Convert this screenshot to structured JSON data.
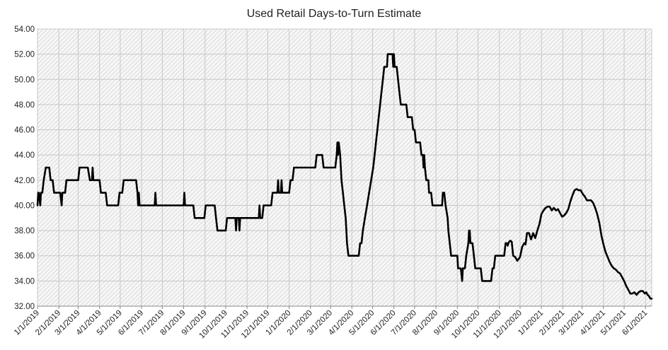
{
  "chart_data": {
    "type": "line",
    "title": "Used Retail Days-to-Turn Estimate",
    "xlabel": "",
    "ylabel": "",
    "ylim": [
      32,
      54
    ],
    "yticks": [
      "32.00",
      "34.00",
      "36.00",
      "38.00",
      "40.00",
      "42.00",
      "44.00",
      "46.00",
      "48.00",
      "50.00",
      "52.00",
      "54.00"
    ],
    "xlim": [
      "1/1/2019",
      "6/10/2021"
    ],
    "xticks": [
      "1/1/2019",
      "2/1/2019",
      "3/1/2019",
      "4/1/2019",
      "5/1/2019",
      "6/1/2019",
      "7/1/2019",
      "8/1/2019",
      "9/1/2019",
      "10/1/2019",
      "11/1/2019",
      "12/1/2019",
      "1/1/2020",
      "2/1/2020",
      "3/1/2020",
      "4/1/2020",
      "5/1/2020",
      "6/1/2020",
      "7/1/2020",
      "8/1/2020",
      "9/1/2020",
      "10/1/2020",
      "11/1/2020",
      "12/1/2020",
      "1/1/2021",
      "2/1/2021",
      "3/1/2021",
      "4/1/2021",
      "5/1/2021",
      "6/1/2021"
    ],
    "grid": true,
    "series": [
      {
        "color": "#000000",
        "points": [
          [
            "1/1/2019",
            40
          ],
          [
            "1/2/2019",
            41
          ],
          [
            "1/3/2019",
            41
          ],
          [
            "1/5/2019",
            40
          ],
          [
            "1/6/2019",
            41
          ],
          [
            "1/8/2019",
            41
          ],
          [
            "1/10/2019",
            42
          ],
          [
            "1/13/2019",
            43
          ],
          [
            "1/18/2019",
            43
          ],
          [
            "1/20/2019",
            42
          ],
          [
            "1/23/2019",
            42
          ],
          [
            "1/25/2019",
            41
          ],
          [
            "2/3/2019",
            41
          ],
          [
            "2/5/2019",
            40
          ],
          [
            "2/6/2019",
            41
          ],
          [
            "2/10/2019",
            41
          ],
          [
            "2/12/2019",
            42
          ],
          [
            "3/1/2019",
            42
          ],
          [
            "3/3/2019",
            43
          ],
          [
            "3/15/2019",
            43
          ],
          [
            "3/18/2019",
            42
          ],
          [
            "3/21/2019",
            42
          ],
          [
            "3/22/2019",
            43
          ],
          [
            "3/23/2019",
            42
          ],
          [
            "4/1/2019",
            42
          ],
          [
            "4/3/2019",
            41
          ],
          [
            "4/10/2019",
            41
          ],
          [
            "4/12/2019",
            40
          ],
          [
            "4/28/2019",
            40
          ],
          [
            "4/30/2019",
            41
          ],
          [
            "5/4/2019",
            41
          ],
          [
            "5/6/2019",
            42
          ],
          [
            "5/24/2019",
            42
          ],
          [
            "5/26/2019",
            41
          ],
          [
            "5/27/2019",
            40
          ],
          [
            "5/28/2019",
            41
          ],
          [
            "5/29/2019",
            40
          ],
          [
            "6/20/2019",
            40
          ],
          [
            "6/21/2019",
            41
          ],
          [
            "6/22/2019",
            40
          ],
          [
            "8/1/2019",
            40
          ],
          [
            "8/2/2019",
            41
          ],
          [
            "8/3/2019",
            40
          ],
          [
            "8/15/2019",
            40
          ],
          [
            "8/17/2019",
            39
          ],
          [
            "8/31/2019",
            39
          ],
          [
            "9/2/2019",
            40
          ],
          [
            "9/15/2019",
            40
          ],
          [
            "9/17/2019",
            39
          ],
          [
            "9/19/2019",
            38
          ],
          [
            "10/1/2019",
            38
          ],
          [
            "10/3/2019",
            39
          ],
          [
            "10/15/2019",
            39
          ],
          [
            "10/16/2019",
            38
          ],
          [
            "10/17/2019",
            39
          ],
          [
            "10/20/2019",
            39
          ],
          [
            "10/21/2019",
            38
          ],
          [
            "10/22/2019",
            39
          ],
          [
            "11/18/2019",
            39
          ],
          [
            "11/19/2019",
            40
          ],
          [
            "11/20/2019",
            39
          ],
          [
            "11/23/2019",
            39
          ],
          [
            "11/25/2019",
            40
          ],
          [
            "12/6/2019",
            40
          ],
          [
            "12/8/2019",
            41
          ],
          [
            "12/15/2019",
            41
          ],
          [
            "12/16/2019",
            42
          ],
          [
            "12/17/2019",
            41
          ],
          [
            "12/20/2019",
            41
          ],
          [
            "12/21/2019",
            42
          ],
          [
            "12/22/2019",
            41
          ],
          [
            "1/1/2020",
            41
          ],
          [
            "1/3/2020",
            42
          ],
          [
            "1/6/2020",
            42
          ],
          [
            "1/8/2020",
            43
          ],
          [
            "2/8/2020",
            43
          ],
          [
            "2/10/2020",
            44
          ],
          [
            "2/18/2020",
            44
          ],
          [
            "2/20/2020",
            43
          ],
          [
            "3/8/2020",
            43
          ],
          [
            "3/10/2020",
            44
          ],
          [
            "3/11/2020",
            45
          ],
          [
            "3/12/2020",
            44
          ],
          [
            "3/13/2020",
            45
          ],
          [
            "3/15/2020",
            44
          ],
          [
            "3/17/2020",
            42
          ],
          [
            "3/19/2020",
            41
          ],
          [
            "3/21/2020",
            40
          ],
          [
            "3/23/2020",
            39
          ],
          [
            "3/25/2020",
            37
          ],
          [
            "3/27/2020",
            36
          ],
          [
            "4/11/2020",
            36
          ],
          [
            "4/13/2020",
            37
          ],
          [
            "4/15/2020",
            37
          ],
          [
            "4/17/2020",
            38
          ],
          [
            "4/20/2020",
            39
          ],
          [
            "4/23/2020",
            40
          ],
          [
            "4/26/2020",
            41
          ],
          [
            "4/29/2020",
            42
          ],
          [
            "5/2/2020",
            43
          ],
          [
            "5/4/2020",
            44
          ],
          [
            "5/6/2020",
            45
          ],
          [
            "5/8/2020",
            46
          ],
          [
            "5/10/2020",
            47
          ],
          [
            "5/12/2020",
            48
          ],
          [
            "5/14/2020",
            49
          ],
          [
            "5/16/2020",
            50
          ],
          [
            "5/18/2020",
            51
          ],
          [
            "5/22/2020",
            51
          ],
          [
            "5/23/2020",
            52
          ],
          [
            "5/30/2020",
            52
          ],
          [
            "5/31/2020",
            51
          ],
          [
            "6/1/2020",
            52
          ],
          [
            "6/2/2020",
            51
          ],
          [
            "6/5/2020",
            51
          ],
          [
            "6/7/2020",
            50
          ],
          [
            "6/9/2020",
            49
          ],
          [
            "6/11/2020",
            48
          ],
          [
            "6/19/2020",
            48
          ],
          [
            "6/21/2020",
            47
          ],
          [
            "6/27/2020",
            47
          ],
          [
            "6/29/2020",
            46
          ],
          [
            "7/1/2020",
            46
          ],
          [
            "7/3/2020",
            45
          ],
          [
            "7/9/2020",
            45
          ],
          [
            "7/11/2020",
            44
          ],
          [
            "7/13/2020",
            44
          ],
          [
            "7/14/2020",
            43
          ],
          [
            "7/15/2020",
            44
          ],
          [
            "7/16/2020",
            43
          ],
          [
            "7/18/2020",
            42
          ],
          [
            "7/21/2020",
            42
          ],
          [
            "7/22/2020",
            41
          ],
          [
            "7/25/2020",
            41
          ],
          [
            "7/27/2020",
            40
          ],
          [
            "8/10/2020",
            40
          ],
          [
            "8/11/2020",
            41
          ],
          [
            "8/13/2020",
            41
          ],
          [
            "8/15/2020",
            40
          ],
          [
            "8/18/2020",
            39
          ],
          [
            "8/19/2020",
            38
          ],
          [
            "8/21/2020",
            37
          ],
          [
            "8/23/2020",
            36
          ],
          [
            "9/1/2020",
            36
          ],
          [
            "9/2/2020",
            35
          ],
          [
            "9/6/2020",
            35
          ],
          [
            "9/8/2020",
            34
          ],
          [
            "9/9/2020",
            35
          ],
          [
            "9/12/2020",
            35
          ],
          [
            "9/14/2020",
            36
          ],
          [
            "9/17/2020",
            37
          ],
          [
            "9/18/2020",
            38
          ],
          [
            "9/19/2020",
            38
          ],
          [
            "9/20/2020",
            37
          ],
          [
            "9/23/2020",
            37
          ],
          [
            "9/25/2020",
            36
          ],
          [
            "9/27/2020",
            35
          ],
          [
            "10/5/2020",
            35
          ],
          [
            "10/7/2020",
            34
          ],
          [
            "10/20/2020",
            34
          ],
          [
            "10/22/2020",
            35
          ],
          [
            "10/24/2020",
            35
          ],
          [
            "10/26/2020",
            36
          ],
          [
            "11/8/2020",
            36
          ],
          [
            "11/10/2020",
            37
          ],
          [
            "11/12/2020",
            37
          ],
          [
            "11/13/2020",
            36.8
          ],
          [
            "11/15/2020",
            37.1
          ],
          [
            "11/17/2020",
            37.2
          ],
          [
            "11/19/2020",
            37.1
          ],
          [
            "11/21/2020",
            36
          ],
          [
            "11/24/2020",
            35.9
          ],
          [
            "11/27/2020",
            35.6
          ],
          [
            "12/1/2020",
            35.9
          ],
          [
            "12/4/2020",
            36.7
          ],
          [
            "12/7/2020",
            37
          ],
          [
            "12/9/2020",
            36.9
          ],
          [
            "12/11/2020",
            37.8
          ],
          [
            "12/14/2020",
            37.8
          ],
          [
            "12/17/2020",
            37.3
          ],
          [
            "12/20/2020",
            37.8
          ],
          [
            "12/23/2020",
            37.4
          ],
          [
            "12/26/2020",
            38
          ],
          [
            "12/29/2020",
            38.5
          ],
          [
            "1/1/2021",
            39.3
          ],
          [
            "1/4/2021",
            39.6
          ],
          [
            "1/7/2021",
            39.8
          ],
          [
            "1/10/2021",
            39.9
          ],
          [
            "1/13/2021",
            39.9
          ],
          [
            "1/16/2021",
            39.6
          ],
          [
            "1/19/2021",
            39.8
          ],
          [
            "1/22/2021",
            39.6
          ],
          [
            "1/25/2021",
            39.7
          ],
          [
            "1/28/2021",
            39.4
          ],
          [
            "1/31/2021",
            39.1
          ],
          [
            "2/3/2021",
            39.2
          ],
          [
            "2/6/2021",
            39.4
          ],
          [
            "2/9/2021",
            39.7
          ],
          [
            "2/12/2021",
            40.3
          ],
          [
            "2/15/2021",
            40.8
          ],
          [
            "2/18/2021",
            41.2
          ],
          [
            "2/21/2021",
            41.3
          ],
          [
            "2/24/2021",
            41.2
          ],
          [
            "2/27/2021",
            41.2
          ],
          [
            "3/2/2021",
            40.9
          ],
          [
            "3/5/2021",
            40.7
          ],
          [
            "3/8/2021",
            40.4
          ],
          [
            "3/11/2021",
            40.4
          ],
          [
            "3/14/2021",
            40.4
          ],
          [
            "3/17/2021",
            40.2
          ],
          [
            "3/20/2021",
            39.8
          ],
          [
            "3/23/2021",
            39.3
          ],
          [
            "3/26/2021",
            38.6
          ],
          [
            "3/29/2021",
            37.6
          ],
          [
            "4/1/2021",
            36.9
          ],
          [
            "4/4/2021",
            36.3
          ],
          [
            "4/7/2021",
            35.9
          ],
          [
            "4/10/2021",
            35.5
          ],
          [
            "4/13/2021",
            35.2
          ],
          [
            "4/16/2021",
            35
          ],
          [
            "4/19/2021",
            34.9
          ],
          [
            "4/22/2021",
            34.7
          ],
          [
            "4/25/2021",
            34.6
          ],
          [
            "4/28/2021",
            34.3
          ],
          [
            "5/1/2021",
            34
          ],
          [
            "5/4/2021",
            33.6
          ],
          [
            "5/7/2021",
            33.3
          ],
          [
            "5/10/2021",
            33
          ],
          [
            "5/13/2021",
            33
          ],
          [
            "5/16/2021",
            33.1
          ],
          [
            "5/19/2021",
            32.9
          ],
          [
            "5/22/2021",
            33.1
          ],
          [
            "5/25/2021",
            33.2
          ],
          [
            "5/28/2021",
            33.2
          ],
          [
            "5/31/2021",
            33
          ],
          [
            "6/2/2021",
            33.1
          ],
          [
            "6/4/2021",
            32.9
          ],
          [
            "6/6/2021",
            32.8
          ],
          [
            "6/8/2021",
            32.6
          ],
          [
            "6/10/2021",
            32.6
          ]
        ]
      }
    ]
  }
}
